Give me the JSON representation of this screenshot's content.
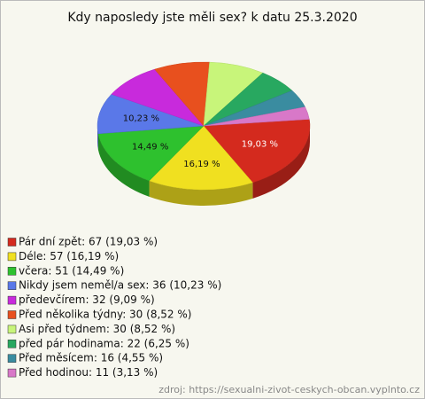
{
  "chart_data": {
    "type": "pie",
    "title": "Kdy naposledy jste měli sex? k datu 25.3.2020",
    "categories": [
      "Pár dní zpět",
      "Déle",
      "včera",
      "Nikdy jsem neměl/a sex",
      "předevčírem",
      "Před několika týdny",
      "Asi před týdnem",
      "před pár hodinama",
      "Před měsícem",
      "Před hodinou"
    ],
    "values": [
      19.03,
      16.19,
      14.49,
      10.23,
      9.09,
      8.52,
      8.52,
      6.25,
      4.55,
      3.13
    ],
    "value_labels": [
      "19,03 %",
      "16,19 %",
      "14,49 %",
      "10,23 %",
      null,
      null,
      null,
      null,
      null,
      null
    ],
    "legend": [
      "Pár dní zpět: 67 (19,03 %)",
      "Déle: 57 (16,19 %)",
      "včera: 51 (14,49 %)",
      "Nikdy jsem neměl/a sex: 36 (10,23 %)",
      "předevčírem: 32 (9,09 %)",
      "Před několika týdny: 30 (8,52 %)",
      "Asi před týdnem: 30 (8,52 %)",
      "před pár hodinama: 22 (6,25 %)",
      "Před měsícem: 16 (4,55 %)",
      "Před hodinou: 11 (3,13 %)"
    ],
    "colors": [
      "#d42a1e",
      "#f0e020",
      "#2ec12e",
      "#5a78e8",
      "#c82adc",
      "#e8501e",
      "#c8f57a",
      "#28a860",
      "#3a8ca0",
      "#d878c8"
    ],
    "source": "zdroj: https://sexualni-zivot-ceskych-obcan.vyplnto.cz"
  }
}
